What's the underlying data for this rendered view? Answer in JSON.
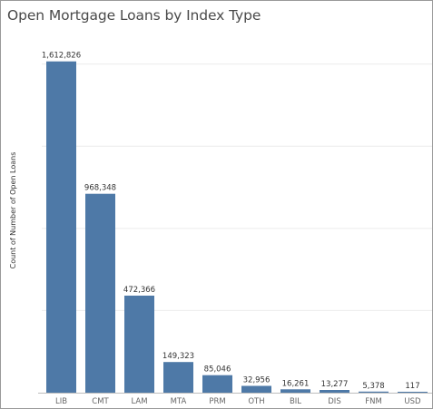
{
  "chart_data": {
    "type": "bar",
    "title": "Open Mortgage Loans by Index Type",
    "ylabel": "Count of Number of Open Loans",
    "xlabel": "",
    "categories": [
      "LIB",
      "CMT",
      "LAM",
      "MTA",
      "PRM",
      "OTH",
      "BIL",
      "DIS",
      "FNM",
      "USD"
    ],
    "values": [
      1612826,
      968348,
      472366,
      149323,
      85046,
      32956,
      16261,
      13277,
      5378,
      117
    ],
    "value_labels": [
      "1,612,826",
      "968,348",
      "472,366",
      "149,323",
      "85,046",
      "32,956",
      "16,261",
      "13,277",
      "5,378",
      "117"
    ],
    "ylim": [
      0,
      1700000
    ],
    "grid": true,
    "legend": "none"
  },
  "colors": {
    "bar": "#4e79a7",
    "grid": "#ececec",
    "axis": "#bdbdbd",
    "title": "#4a4a4a"
  }
}
